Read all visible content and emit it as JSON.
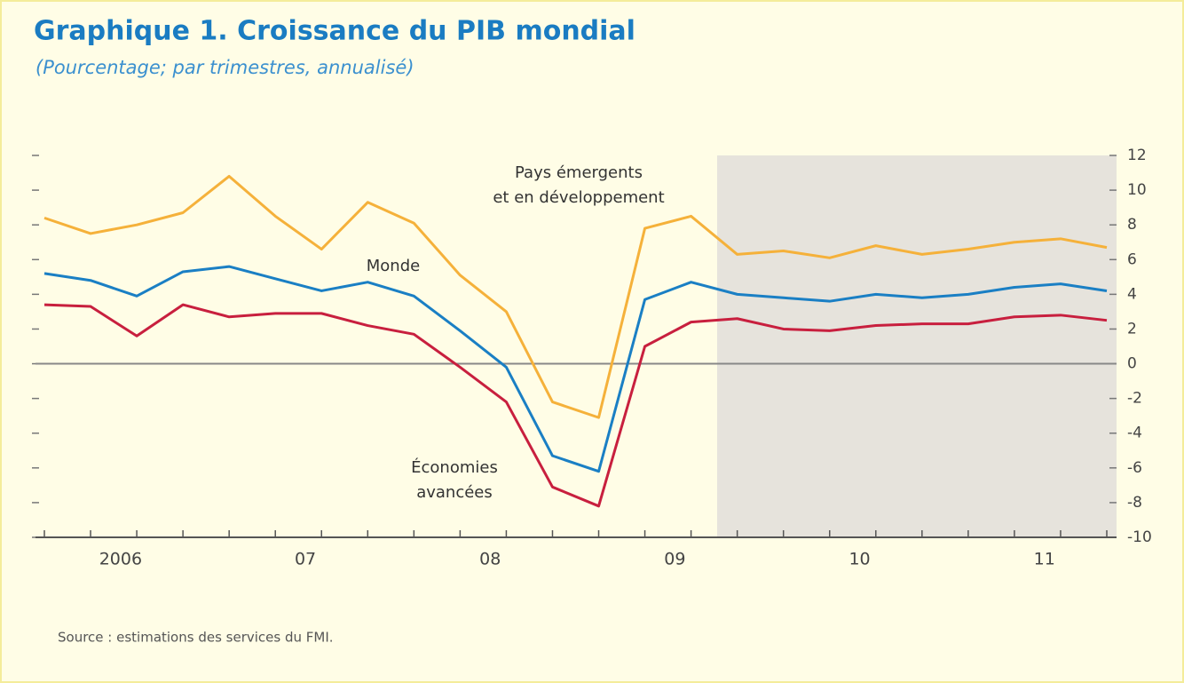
{
  "chart_data": {
    "type": "line",
    "title": "Graphique 1. Croissance du PIB mondial",
    "subtitle": "(Pourcentage; par trimestres, annualisé)",
    "categories": [
      null,
      null,
      "2006",
      null,
      null,
      null,
      "07",
      null,
      null,
      null,
      "08",
      null,
      null,
      null,
      "09",
      null,
      null,
      null,
      "10",
      null,
      null,
      null,
      "11",
      null
    ],
    "series": [
      {
        "name": "Pays émergents et en développement",
        "color": "#f5b13a",
        "values": [
          8.4,
          7.5,
          8.0,
          8.7,
          10.8,
          8.5,
          6.6,
          9.3,
          8.1,
          5.1,
          3.0,
          -2.2,
          -3.1,
          7.8,
          8.5,
          6.3,
          6.5,
          6.1,
          6.8,
          6.3,
          6.6,
          7.0,
          7.2,
          6.7
        ]
      },
      {
        "name": "Monde",
        "color": "#1a7fc4",
        "values": [
          5.2,
          4.8,
          3.9,
          5.3,
          5.6,
          4.9,
          4.2,
          4.7,
          3.9,
          1.9,
          -0.2,
          -5.3,
          -6.2,
          3.7,
          4.7,
          4.0,
          3.8,
          3.6,
          4.0,
          3.8,
          4.0,
          4.4,
          4.6,
          4.2
        ]
      },
      {
        "name": "Économies avancées",
        "color": "#c81f3e",
        "values": [
          3.4,
          3.3,
          1.6,
          3.4,
          2.7,
          2.9,
          2.9,
          2.2,
          1.7,
          -0.2,
          -2.2,
          -7.1,
          -8.2,
          1.0,
          2.4,
          2.6,
          2.0,
          1.9,
          2.2,
          2.3,
          2.3,
          2.7,
          2.8,
          2.5
        ]
      }
    ],
    "annotations": [
      {
        "lines": [
          "Pays émergents",
          "et en développement"
        ]
      },
      {
        "lines": [
          "Monde"
        ]
      },
      {
        "lines": [
          "Économies",
          "avancées"
        ]
      }
    ],
    "ylim": [
      -10,
      12
    ],
    "yticks": [
      12,
      10,
      8,
      6,
      4,
      2,
      0,
      -2,
      -4,
      -6,
      -8,
      -10
    ],
    "grid": false,
    "source": "Source : estimations des services du FMI."
  }
}
